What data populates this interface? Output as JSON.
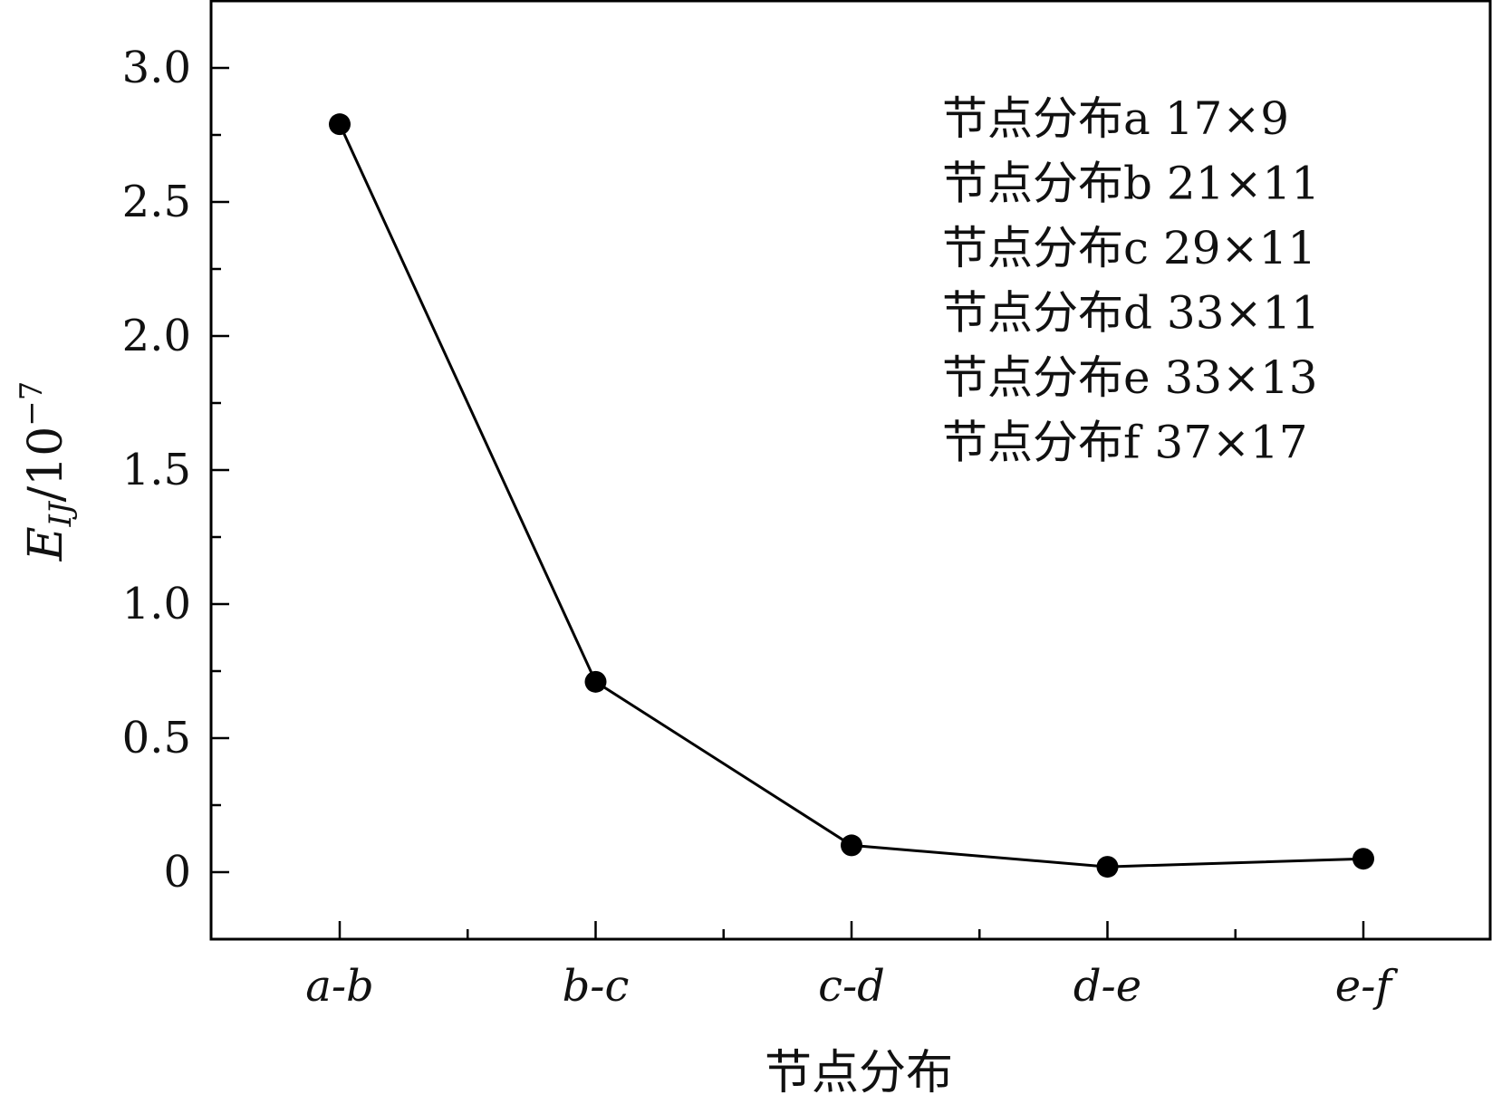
{
  "chart_data": {
    "type": "line",
    "categories": [
      "a-b",
      "b-c",
      "c-d",
      "d-e",
      "e-f"
    ],
    "series": [
      {
        "values": [
          2.79,
          0.71,
          0.1,
          0.02,
          0.05
        ]
      }
    ],
    "ylim": [
      -0.25,
      3.25
    ],
    "yticks": [
      0,
      0.5,
      1.0,
      1.5,
      2.0,
      2.5,
      3.0
    ],
    "ytick_labels": [
      "0",
      "0.5",
      "1.0",
      "1.5",
      "2.0",
      "2.5",
      "3.0"
    ],
    "xlabel": "节点分布",
    "ylabel": "E_IJ/10^-7",
    "ylabel_base": "E",
    "ylabel_sub": "IJ",
    "ylabel_rest": "/10",
    "ylabel_exp": "−7",
    "grid": false,
    "legend_placement": "top-right",
    "annotations": [
      "节点分布a 17×9",
      "节点分布b 21×11",
      "节点分布c 29×11",
      "节点分布d 33×11",
      "节点分布e 33×13",
      "节点分布f 37×17"
    ],
    "line_color": "#000000",
    "marker_color": "#000000"
  }
}
